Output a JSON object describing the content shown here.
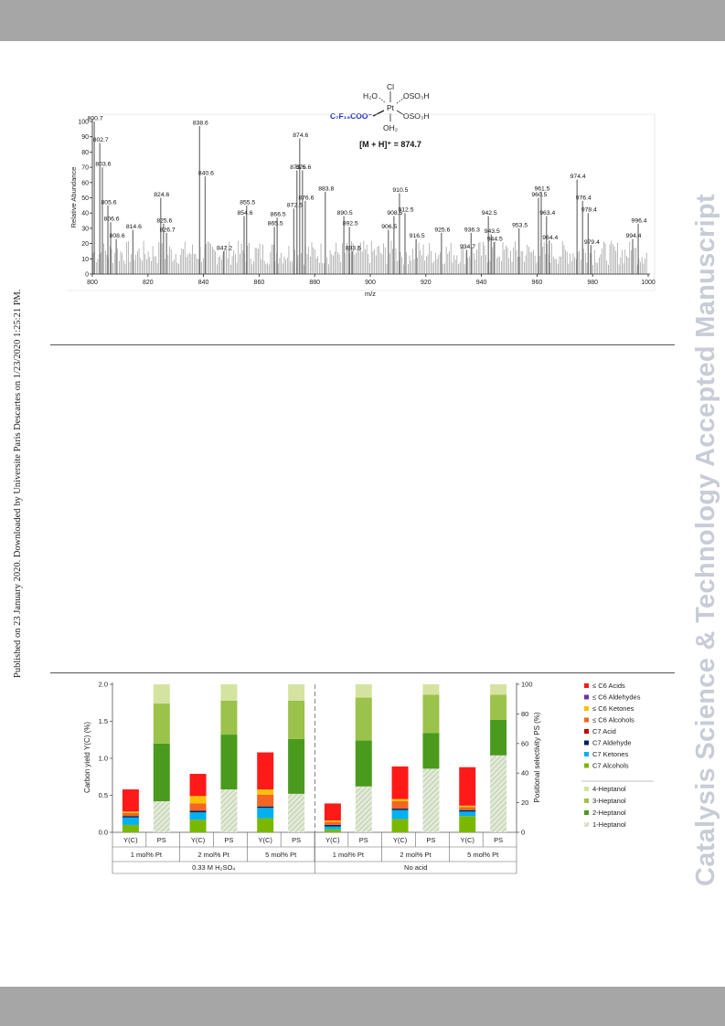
{
  "header_band_color": "#a6a6a6",
  "published_note": "Published on 23 January 2020. Downloaded by Universite Paris Descartes on 1/23/2020 1:25:21 PM.",
  "watermark": "Catalysis Science & Technology Accepted Manuscript",
  "chart_data": [
    {
      "type": "bar",
      "title": "",
      "xlabel": "m/z",
      "ylabel": "Relative Abundance",
      "xlim": [
        800,
        1000
      ],
      "ylim": [
        0,
        100
      ],
      "x_ticks": [
        "800",
        "820",
        "840",
        "860",
        "880",
        "900",
        "920",
        "940",
        "960",
        "980",
        "1000"
      ],
      "y_ticks": [
        "0",
        "10",
        "20",
        "30",
        "40",
        "50",
        "60",
        "70",
        "80",
        "90",
        "100"
      ],
      "annotation": "[M + H]⁺ = 874.7",
      "structure_labels": {
        "top": "Cl",
        "upper_left": "H₂O",
        "upper_right": "OSO₃H",
        "center": "Pt",
        "left": "C₇F₁₅COO⁻",
        "right": "OSO₃H",
        "bottom": "OH₂",
        "left_color": "#1f2fbf"
      },
      "peaks": [
        {
          "mz": 800.7,
          "ab": 100,
          "label": "800.7"
        },
        {
          "mz": 802.7,
          "ab": 86,
          "label": "802.7"
        },
        {
          "mz": 803.6,
          "ab": 70,
          "label": "803.6"
        },
        {
          "mz": 805.6,
          "ab": 45,
          "label": "805.6"
        },
        {
          "mz": 806.6,
          "ab": 34,
          "label": "806.6"
        },
        {
          "mz": 808.6,
          "ab": 23,
          "label": "808.6"
        },
        {
          "mz": 814.6,
          "ab": 29,
          "label": "814.6"
        },
        {
          "mz": 824.6,
          "ab": 50,
          "label": "824.6"
        },
        {
          "mz": 825.6,
          "ab": 33,
          "label": "825.6"
        },
        {
          "mz": 826.7,
          "ab": 27,
          "label": "826.7"
        },
        {
          "mz": 838.6,
          "ab": 97,
          "label": "838.6"
        },
        {
          "mz": 840.6,
          "ab": 64,
          "label": "840.6"
        },
        {
          "mz": 847.2,
          "ab": 15,
          "label": "847.2"
        },
        {
          "mz": 854.6,
          "ab": 38,
          "label": "854.6"
        },
        {
          "mz": 855.5,
          "ab": 45,
          "label": "855.5"
        },
        {
          "mz": 865.5,
          "ab": 31,
          "label": "865.5"
        },
        {
          "mz": 866.5,
          "ab": 37,
          "label": "866.5"
        },
        {
          "mz": 872.5,
          "ab": 43,
          "label": "872.5"
        },
        {
          "mz": 873.6,
          "ab": 68,
          "label": "873.6"
        },
        {
          "mz": 874.6,
          "ab": 89,
          "label": "874.6"
        },
        {
          "mz": 875.6,
          "ab": 68,
          "label": "875.6"
        },
        {
          "mz": 876.6,
          "ab": 48,
          "label": "876.6"
        },
        {
          "mz": 883.8,
          "ab": 54,
          "label": "883.8"
        },
        {
          "mz": 890.5,
          "ab": 38,
          "label": "890.5"
        },
        {
          "mz": 892.5,
          "ab": 31,
          "label": "892.5"
        },
        {
          "mz": 893.5,
          "ab": 15,
          "label": "893.5"
        },
        {
          "mz": 906.5,
          "ab": 29,
          "label": "906.5"
        },
        {
          "mz": 908.5,
          "ab": 38,
          "label": "908.5"
        },
        {
          "mz": 910.5,
          "ab": 53,
          "label": "910.5"
        },
        {
          "mz": 912.5,
          "ab": 40,
          "label": "912.5"
        },
        {
          "mz": 916.5,
          "ab": 23,
          "label": "916.5"
        },
        {
          "mz": 925.6,
          "ab": 27,
          "label": "925.6"
        },
        {
          "mz": 934.7,
          "ab": 16,
          "label": "934.7"
        },
        {
          "mz": 936.3,
          "ab": 27,
          "label": "936.3"
        },
        {
          "mz": 942.5,
          "ab": 38,
          "label": "942.5"
        },
        {
          "mz": 943.5,
          "ab": 26,
          "label": "943.5"
        },
        {
          "mz": 944.5,
          "ab": 21,
          "label": "944.5"
        },
        {
          "mz": 953.5,
          "ab": 30,
          "label": "953.5"
        },
        {
          "mz": 960.5,
          "ab": 50,
          "label": "960.5"
        },
        {
          "mz": 961.5,
          "ab": 54,
          "label": "961.5"
        },
        {
          "mz": 963.4,
          "ab": 38,
          "label": "963.4"
        },
        {
          "mz": 964.4,
          "ab": 22,
          "label": "964.4"
        },
        {
          "mz": 974.4,
          "ab": 62,
          "label": "974.4"
        },
        {
          "mz": 976.4,
          "ab": 48,
          "label": "976.4"
        },
        {
          "mz": 978.4,
          "ab": 40,
          "label": "978.4"
        },
        {
          "mz": 979.4,
          "ab": 19,
          "label": "979.4"
        },
        {
          "mz": 994.4,
          "ab": 23,
          "label": "994.4"
        },
        {
          "mz": 996.4,
          "ab": 33,
          "label": "996.4"
        }
      ]
    },
    {
      "type": "bar",
      "title": "",
      "ylabel": "Carbon yield Y(C) (%)",
      "y2label": "Positional selectivity PS (%)",
      "ylim": [
        0,
        2.0
      ],
      "y2lim": [
        0,
        100
      ],
      "y_ticks": [
        "0.0",
        "0.5",
        "1.0",
        "1.5",
        "2.0"
      ],
      "y2_ticks": [
        "0",
        "20",
        "40",
        "60",
        "80",
        "100"
      ],
      "bar_labels": [
        "Y(C)",
        "PS"
      ],
      "yield_legend": [
        {
          "name": "≤ C6 Acids",
          "color": "#ff1a1a"
        },
        {
          "name": "≤ C6 Aldehydes",
          "color": "#7030a0"
        },
        {
          "name": "≤ C6 Ketones",
          "color": "#ffc000"
        },
        {
          "name": "≤ C6 Alcohols",
          "color": "#f26522"
        },
        {
          "name": "C7 Acid",
          "color": "#c00000"
        },
        {
          "name": "C7 Aldehyde",
          "color": "#002060"
        },
        {
          "name": "C7 Ketones",
          "color": "#00b0f0"
        },
        {
          "name": "C7 Alcohols",
          "color": "#7ab800"
        }
      ],
      "ps_legend": [
        {
          "name": "4-Heptanol",
          "color": "#d4e4a0"
        },
        {
          "name": "3-Heptanol",
          "color": "#9bc24a"
        },
        {
          "name": "2-Heptanol",
          "color": "#4a9a1e"
        },
        {
          "name": "1-Heptanol",
          "color": "#c9d8b8"
        }
      ],
      "groups": [
        {
          "loading": "1 mol% Pt",
          "condition": "0.33 M H₂SO₄",
          "yield": [
            0.3,
            0.0,
            0.02,
            0.04,
            0.0,
            0.02,
            0.1,
            0.1
          ],
          "ps": [
            13,
            27,
            39,
            21
          ]
        },
        {
          "loading": "2 mol% Pt",
          "condition": "0.33 M H₂SO₄",
          "yield": [
            0.3,
            0.0,
            0.1,
            0.1,
            0.0,
            0.02,
            0.1,
            0.17
          ],
          "ps": [
            11,
            23,
            37,
            29
          ]
        },
        {
          "loading": "5 mol% Pt",
          "condition": "0.33 M H₂SO₄",
          "yield": [
            0.5,
            0.0,
            0.07,
            0.16,
            0.0,
            0.02,
            0.14,
            0.19
          ],
          "ps": [
            11,
            26,
            37,
            26
          ]
        },
        {
          "loading": "1 mol% Pt",
          "condition": "No acid",
          "yield": [
            0.23,
            0.0,
            0.02,
            0.04,
            0.0,
            0.02,
            0.04,
            0.04
          ],
          "ps": [
            9,
            29,
            31,
            31
          ]
        },
        {
          "loading": "2 mol% Pt",
          "condition": "No acid",
          "yield": [
            0.44,
            0.0,
            0.03,
            0.1,
            0.0,
            0.02,
            0.12,
            0.18
          ],
          "ps": [
            7,
            26,
            24,
            43
          ]
        },
        {
          "loading": "5 mol% Pt",
          "condition": "No acid",
          "yield": [
            0.52,
            0.0,
            0.02,
            0.04,
            0.0,
            0.02,
            0.06,
            0.22
          ],
          "ps": [
            7,
            17,
            24,
            52
          ]
        }
      ],
      "conditions": [
        "0.33 M H₂SO₄",
        "No acid"
      ]
    }
  ]
}
